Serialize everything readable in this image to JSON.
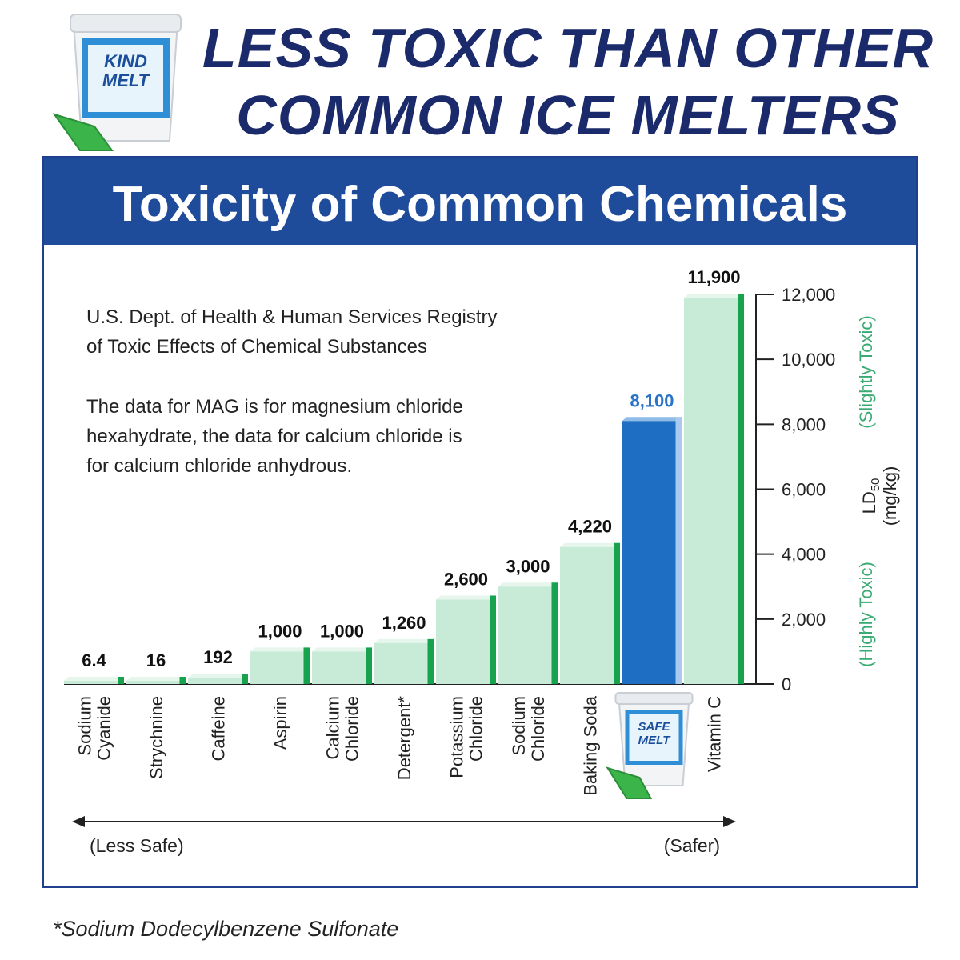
{
  "headline": {
    "line1": "LESS TOXIC THAN OTHER",
    "line2": "COMMON ICE MELTERS"
  },
  "product_top": {
    "brand_line1": "KIND",
    "brand_line2": "MELT"
  },
  "panel": {
    "title": "Toxicity of Common Chemicals",
    "source_line1": "U.S. Dept. of Health & Human Services Registry",
    "source_line2": "of Toxic Effects of Chemical Substances",
    "note_line1": "The data for MAG is for magnesium chloride",
    "note_line2": "hexahydrate, the data for calcium chloride is",
    "note_line3": "for calcium chloride anhydrous."
  },
  "chart_data": {
    "type": "bar",
    "categories": [
      {
        "line1": "Sodium",
        "line2": "Cyanide"
      },
      {
        "line1": "Strychnine",
        "line2": ""
      },
      {
        "line1": "Caffeine",
        "line2": ""
      },
      {
        "line1": "Aspirin",
        "line2": ""
      },
      {
        "line1": "Calcium",
        "line2": "Chloride"
      },
      {
        "line1": "Detergent*",
        "line2": ""
      },
      {
        "line1": "Potassium",
        "line2": "Chloride"
      },
      {
        "line1": "Sodium",
        "line2": "Chloride"
      },
      {
        "line1": "Baking Soda",
        "line2": ""
      },
      {
        "line1": "",
        "line2": ""
      },
      {
        "line1": "Vitamin C",
        "line2": ""
      }
    ],
    "values": [
      6.4,
      16,
      192,
      1000,
      1000,
      1260,
      2600,
      3000,
      4220,
      8100,
      11900
    ],
    "value_labels": [
      "6.4",
      "16",
      "192",
      "1,000",
      "1,000",
      "1,260",
      "2,600",
      "3,000",
      "4,220",
      "8,100",
      "11,900"
    ],
    "highlight_index": 9,
    "highlight_product": {
      "brand_line1": "SAFE",
      "brand_line2": "MELT"
    },
    "ylim": [
      0,
      12000
    ],
    "yticks": [
      "0",
      "2,000",
      "4,000",
      "6,000",
      "8,000",
      "10,000",
      "12,000"
    ],
    "ylabel": "LD50 (mg/kg)",
    "ylabel_main": "LD",
    "ylabel_sub": "50",
    "ylabel_units": "(mg/kg)",
    "scale_low": "(Highly Toxic)",
    "scale_high": "(Slightly Toxic)",
    "arrow_left": "(Less Safe)",
    "arrow_right": "(Safer)",
    "colors": {
      "bar_face": "#c8ebd8",
      "bar_side": "#17a24e",
      "bar_top": "#e6f6ec",
      "highlight_face": "#1e6fc3",
      "highlight_side": "#a9c9ee",
      "highlight_label": "#2a74c8",
      "scale_text": "#3aaa73"
    }
  },
  "footnote": "*Sodium Dodecylbenzene Sulfonate"
}
